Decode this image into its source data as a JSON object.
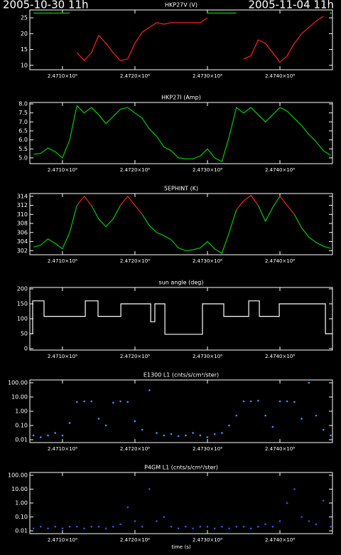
{
  "header": {
    "start": "2005-10-30 11h",
    "end": "2005-11-04 11h"
  },
  "chart_data": [
    {
      "type": "line",
      "title": "HKP27V (V)",
      "x": [
        247060000,
        247070000,
        247080000,
        247090000,
        247100000,
        247110000,
        247120000,
        247130000,
        247140000,
        247150000,
        247160000,
        247170000,
        247180000,
        247190000,
        247200000,
        247210000,
        247220000,
        247230000,
        247240000,
        247250000,
        247260000,
        247270000,
        247280000,
        247290000,
        247300000,
        247310000,
        247320000,
        247330000,
        247340000,
        247350000,
        247360000,
        247370000,
        247380000,
        247390000,
        247400000,
        247410000,
        247420000,
        247430000,
        247440000,
        247450000,
        247460000,
        247470000
      ],
      "series": [
        {
          "color": "#00cc00",
          "values": [
            26.5,
            26.5,
            26.5,
            26.5,
            26.5,
            26.5,
            null,
            null,
            null,
            null,
            null,
            null,
            null,
            null,
            null,
            null,
            null,
            null,
            null,
            null,
            null,
            null,
            null,
            null,
            26.5,
            26.5,
            26.5,
            26.5,
            26.5,
            null,
            null,
            null,
            null,
            null,
            null,
            null,
            null,
            null,
            null,
            null,
            null,
            26.5
          ]
        },
        {
          "color": "#ff2020",
          "values": [
            null,
            null,
            null,
            null,
            null,
            null,
            14,
            11.5,
            14,
            19.5,
            17,
            14,
            11.5,
            12,
            17,
            20.5,
            22,
            23.5,
            23,
            23.5,
            23.5,
            23.5,
            23.5,
            23.5,
            25,
            null,
            null,
            null,
            null,
            12,
            13,
            18,
            17,
            14,
            11,
            13,
            17,
            20,
            22,
            24,
            25.5,
            null
          ]
        }
      ],
      "xlim": [
        247055000,
        247472500
      ],
      "xticks": [
        {
          "value": 247100000,
          "label": "2.4710×10⁸"
        },
        {
          "value": 247200000,
          "label": "2.4720×10⁸"
        },
        {
          "value": 247300000,
          "label": "2.4730×10⁸"
        },
        {
          "value": 247400000,
          "label": "2.4740×10⁸"
        }
      ],
      "ylim": [
        8.6,
        27.5
      ],
      "yticks": [
        10,
        15,
        20,
        25
      ],
      "log": false
    },
    {
      "type": "line",
      "title": "HKP27I (Amp)",
      "x": [
        247060000,
        247070000,
        247080000,
        247090000,
        247100000,
        247110000,
        247120000,
        247130000,
        247140000,
        247150000,
        247160000,
        247170000,
        247180000,
        247190000,
        247200000,
        247210000,
        247220000,
        247230000,
        247240000,
        247250000,
        247260000,
        247270000,
        247280000,
        247290000,
        247300000,
        247310000,
        247320000,
        247330000,
        247340000,
        247350000,
        247360000,
        247370000,
        247380000,
        247390000,
        247400000,
        247410000,
        247420000,
        247430000,
        247440000,
        247450000,
        247460000,
        247470000
      ],
      "series": [
        {
          "color": "#00cc00",
          "values": [
            5.2,
            5.25,
            5.55,
            5.35,
            5.0,
            6.0,
            7.9,
            7.5,
            7.8,
            7.4,
            6.9,
            7.3,
            7.7,
            7.8,
            7.5,
            7.2,
            6.6,
            6.2,
            5.6,
            5.4,
            5.0,
            4.95,
            4.95,
            5.1,
            5.5,
            5.0,
            4.8,
            6.2,
            7.8,
            7.5,
            7.8,
            7.4,
            7.0,
            7.4,
            7.8,
            7.6,
            7.2,
            6.8,
            6.3,
            5.9,
            5.4,
            5.15
          ]
        }
      ],
      "xlim": [
        247055000,
        247472500
      ],
      "xticks": [
        {
          "value": 247100000,
          "label": "2.4710×10⁸"
        },
        {
          "value": 247200000,
          "label": "2.4720×10⁸"
        },
        {
          "value": 247300000,
          "label": "2.4730×10⁸"
        },
        {
          "value": 247400000,
          "label": "2.4740×10⁸"
        }
      ],
      "ylim": [
        4.68,
        8.08
      ],
      "yticks": [
        {
          "value": 5,
          "label": "5.0"
        },
        5.5,
        {
          "value": 6,
          "label": "6.0"
        },
        6.5,
        {
          "value": 7,
          "label": "7.0"
        },
        7.5,
        {
          "value": 8,
          "label": "8.0"
        }
      ],
      "log": false
    },
    {
      "type": "line",
      "title": "5EPHINT (K)",
      "x": [
        247060000,
        247070000,
        247080000,
        247090000,
        247100000,
        247110000,
        247120000,
        247130000,
        247140000,
        247150000,
        247160000,
        247170000,
        247180000,
        247190000,
        247200000,
        247210000,
        247220000,
        247230000,
        247240000,
        247250000,
        247260000,
        247270000,
        247280000,
        247290000,
        247300000,
        247310000,
        247320000,
        247330000,
        247340000,
        247350000,
        247360000,
        247370000,
        247380000,
        247390000,
        247400000,
        247410000,
        247420000,
        247430000,
        247440000,
        247450000,
        247460000,
        247470000
      ],
      "series": [
        {
          "color": "#00cc00",
          "values": [
            302.8,
            303.2,
            304.6,
            303.6,
            302.4,
            306,
            312,
            null,
            312,
            309,
            307.3,
            309,
            312,
            null,
            null,
            310,
            307.5,
            306,
            305.3,
            304.4,
            302.6,
            302,
            302.2,
            302.6,
            304,
            302.4,
            301.4,
            306,
            311,
            null,
            null,
            312,
            308.5,
            311.5,
            314,
            null,
            310,
            307,
            305,
            303.8,
            303,
            302.5
          ]
        },
        {
          "color": "#ff2020",
          "values": [
            null,
            null,
            null,
            null,
            null,
            null,
            312,
            314,
            312,
            null,
            null,
            null,
            312,
            314,
            312,
            310,
            null,
            null,
            null,
            null,
            null,
            null,
            null,
            null,
            null,
            null,
            null,
            null,
            311,
            313,
            314.2,
            312,
            null,
            null,
            314,
            312,
            310,
            null,
            null,
            null,
            null,
            null
          ]
        }
      ],
      "xlim": [
        247055000,
        247472500
      ],
      "xticks": [
        {
          "value": 247100000,
          "label": "2.4710×10⁸"
        },
        {
          "value": 247200000,
          "label": "2.4720×10⁸"
        },
        {
          "value": 247300000,
          "label": "2.4730×10⁸"
        },
        {
          "value": 247400000,
          "label": "2.4740×10⁸"
        }
      ],
      "ylim": [
        301.1,
        314.6
      ],
      "yticks": [
        302,
        304,
        306,
        308,
        310,
        312,
        314
      ],
      "log": false
    },
    {
      "type": "line",
      "title": "sun angle (deg)",
      "x": [
        247055000,
        247058900,
        247058900,
        247074600,
        247074600,
        247131500,
        247131500,
        247149100,
        247149100,
        247180500,
        247180500,
        247221700,
        247221700,
        247227500,
        247227500,
        247241300,
        247241300,
        247293200,
        247293200,
        247322600,
        247322600,
        247357000,
        247357000,
        247371700,
        247371700,
        247399100,
        247399100,
        247462800,
        247462800,
        247472600
      ],
      "series": [
        {
          "color": "#ffffff",
          "values": [
            50,
            50,
            160,
            160,
            108,
            108,
            160,
            160,
            108,
            108,
            150,
            150,
            90,
            90,
            150,
            150,
            48,
            48,
            150,
            150,
            108,
            108,
            160,
            160,
            108,
            108,
            150,
            150,
            50,
            50
          ]
        }
      ],
      "xlim": [
        247055000,
        247472500
      ],
      "xticks": [
        {
          "value": 247100000,
          "label": "2.4710×10⁸"
        },
        {
          "value": 247200000,
          "label": "2.4720×10⁸"
        },
        {
          "value": 247300000,
          "label": "2.4730×10⁸"
        },
        {
          "value": 247400000,
          "label": "2.4740×10⁸"
        }
      ],
      "ylim": [
        -4.8,
        204.8
      ],
      "yticks": [
        0,
        50,
        100,
        150,
        200
      ],
      "log": false
    },
    {
      "type": "scatter",
      "title": "E1300 L1 (cnts/s/cm²/ster)",
      "x": [
        247060000,
        247070000,
        247080000,
        247090000,
        247100000,
        247110000,
        247120000,
        247130000,
        247140000,
        247150000,
        247160000,
        247170000,
        247180000,
        247190000,
        247200000,
        247210000,
        247220000,
        247230000,
        247240000,
        247250000,
        247260000,
        247270000,
        247280000,
        247290000,
        247300000,
        247310000,
        247320000,
        247330000,
        247340000,
        247350000,
        247360000,
        247370000,
        247380000,
        247390000,
        247400000,
        247410000,
        247420000,
        247430000,
        247440000,
        247450000,
        247460000,
        247470000
      ],
      "series": [
        {
          "color": "#3399ff",
          "values": [
            0.02,
            0.015,
            0.02,
            0.03,
            0.02,
            0.15,
            4.5,
            5,
            5,
            0.3,
            0.1,
            4,
            5,
            4.5,
            0.2,
            0.05,
            30,
            0.03,
            0.02,
            0.025,
            0.018,
            0.02,
            0.03,
            0.02,
            0.015,
            0.025,
            0.03,
            0.1,
            0.5,
            5,
            5,
            5.5,
            0.5,
            0.08,
            5,
            5,
            4.5,
            0.3,
            100,
            0.5,
            0.05,
            0.02
          ]
        }
      ],
      "xlim": [
        247055000,
        247472500
      ],
      "xticks": [
        {
          "value": 247100000,
          "label": "2.4710×10⁸"
        },
        {
          "value": 247200000,
          "label": "2.4720×10⁸"
        },
        {
          "value": 247300000,
          "label": "2.4730×10⁸"
        },
        {
          "value": 247400000,
          "label": "2.4740×10⁸"
        }
      ],
      "ylim": [
        0.0063,
        158
      ],
      "yticks": [
        0.01,
        {
          "value": 0.1,
          "label": "0.10"
        },
        {
          "value": 1,
          "label": "1.00"
        },
        {
          "value": 10,
          "label": "10.00"
        },
        {
          "value": 100,
          "label": "100.00"
        }
      ],
      "log": true
    },
    {
      "type": "scatter",
      "title": "P4GM L1 (cnts/s/cm²/ster)",
      "xlabel": "time (s)",
      "x": [
        247060000,
        247070000,
        247080000,
        247090000,
        247100000,
        247110000,
        247120000,
        247130000,
        247140000,
        247150000,
        247160000,
        247170000,
        247180000,
        247190000,
        247200000,
        247210000,
        247220000,
        247230000,
        247240000,
        247250000,
        247260000,
        247270000,
        247280000,
        247290000,
        247300000,
        247310000,
        247320000,
        247330000,
        247340000,
        247350000,
        247360000,
        247370000,
        247380000,
        247390000,
        247400000,
        247410000,
        247420000,
        247430000,
        247440000,
        247450000,
        247460000,
        247470000
      ],
      "series": [
        {
          "color": "#3355dd",
          "values": [
            0.015,
            0.02,
            0.015,
            0.02,
            0.015,
            0.02,
            0.02,
            0.015,
            0.02,
            0.02,
            0.015,
            0.02,
            0.03,
            0.5,
            0.05,
            0.02,
            10,
            0.05,
            0.1,
            0.02,
            0.015,
            0.02,
            0.015,
            0.02,
            0.02,
            0.015,
            0.02,
            0.015,
            0.02,
            0.02,
            0.015,
            0.02,
            0.03,
            0.02,
            0.05,
            1,
            10,
            0.1,
            0.05,
            0.03,
            1.5,
            0.02
          ]
        }
      ],
      "xlim": [
        247055000,
        247472500
      ],
      "xticks": [
        {
          "value": 247100000,
          "label": "2.4710×10⁸"
        },
        {
          "value": 247200000,
          "label": "2.4720×10⁸"
        },
        {
          "value": 247300000,
          "label": "2.4730×10⁸"
        },
        {
          "value": 247400000,
          "label": "2.4740×10⁸"
        }
      ],
      "ylim": [
        0.0063,
        158
      ],
      "yticks": [
        0.01,
        {
          "value": 0.1,
          "label": "0.10"
        },
        {
          "value": 1,
          "label": "1.00"
        },
        {
          "value": 10,
          "label": "10.00"
        },
        {
          "value": 100,
          "label": "100.00"
        }
      ],
      "log": true
    }
  ]
}
